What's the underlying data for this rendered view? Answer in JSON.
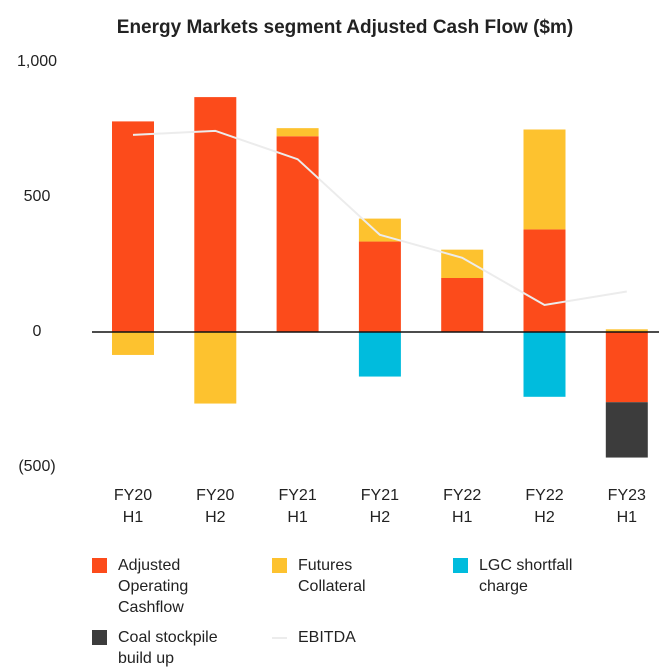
{
  "chart_data": {
    "type": "bar",
    "stacked": true,
    "title": "Energy Markets segment Adjusted Cash Flow ($m)",
    "categories": [
      "FY20\nH1",
      "FY20\nH2",
      "FY21\nH1",
      "FY21\nH2",
      "FY22\nH1",
      "FY22\nH2",
      "FY23\nH1"
    ],
    "ylim": [
      -500,
      1000
    ],
    "yticks": [
      {
        "value": 1000,
        "label": "1,000"
      },
      500,
      0,
      {
        "value": -500,
        "label": "(500)"
      }
    ],
    "series": [
      {
        "name": "Adjusted Operating Cashflow",
        "color": "#fc4b1b",
        "values": [
          780,
          870,
          725,
          335,
          200,
          380,
          -260
        ]
      },
      {
        "name": "Futures Collateral",
        "color": "#fdc22f",
        "values": [
          -85,
          -265,
          30,
          85,
          105,
          370,
          10
        ]
      },
      {
        "name": "LGC shortfall charge",
        "color": "#00bcdd",
        "values": [
          null,
          null,
          null,
          -165,
          null,
          -240,
          null
        ]
      },
      {
        "name": "Coal stockpile build up",
        "color": "#3c3c3c",
        "values": [
          null,
          null,
          null,
          null,
          null,
          null,
          -205
        ]
      },
      {
        "name": "EBITDA",
        "color": "#ececec",
        "type": "line",
        "values": [
          730,
          745,
          640,
          360,
          275,
          100,
          150
        ]
      }
    ]
  }
}
